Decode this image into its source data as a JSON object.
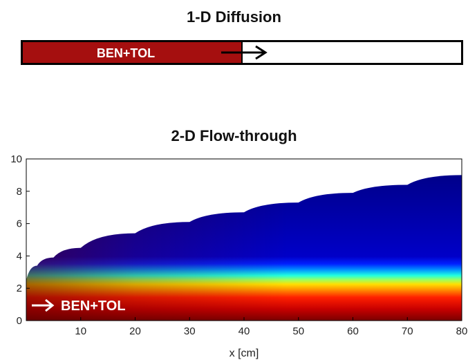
{
  "diffusion": {
    "title": "1-D Diffusion",
    "label": "BEN+TOL",
    "fill_fraction": 0.5,
    "fill_color": "#a50f0f"
  },
  "flow": {
    "title": "2-D Flow-through",
    "label": "BEN+TOL",
    "xlabel": "x [cm]",
    "xlim": [
      0,
      80
    ],
    "ylim": [
      0,
      10
    ],
    "xticks": [
      10,
      20,
      30,
      40,
      50,
      60,
      70,
      80
    ],
    "yticks": [
      0,
      2,
      4,
      6,
      8,
      10
    ],
    "plume_source_y": 2.5,
    "plume_upper_boundary": [
      {
        "x": 0,
        "y": 2.5
      },
      {
        "x": 2,
        "y": 3.4
      },
      {
        "x": 5,
        "y": 3.9
      },
      {
        "x": 10,
        "y": 4.5
      },
      {
        "x": 20,
        "y": 5.4
      },
      {
        "x": 30,
        "y": 6.1
      },
      {
        "x": 40,
        "y": 6.7
      },
      {
        "x": 50,
        "y": 7.3
      },
      {
        "x": 60,
        "y": 7.9
      },
      {
        "x": 70,
        "y": 8.4
      },
      {
        "x": 80,
        "y": 9.0
      }
    ],
    "colormap": "jet"
  }
}
